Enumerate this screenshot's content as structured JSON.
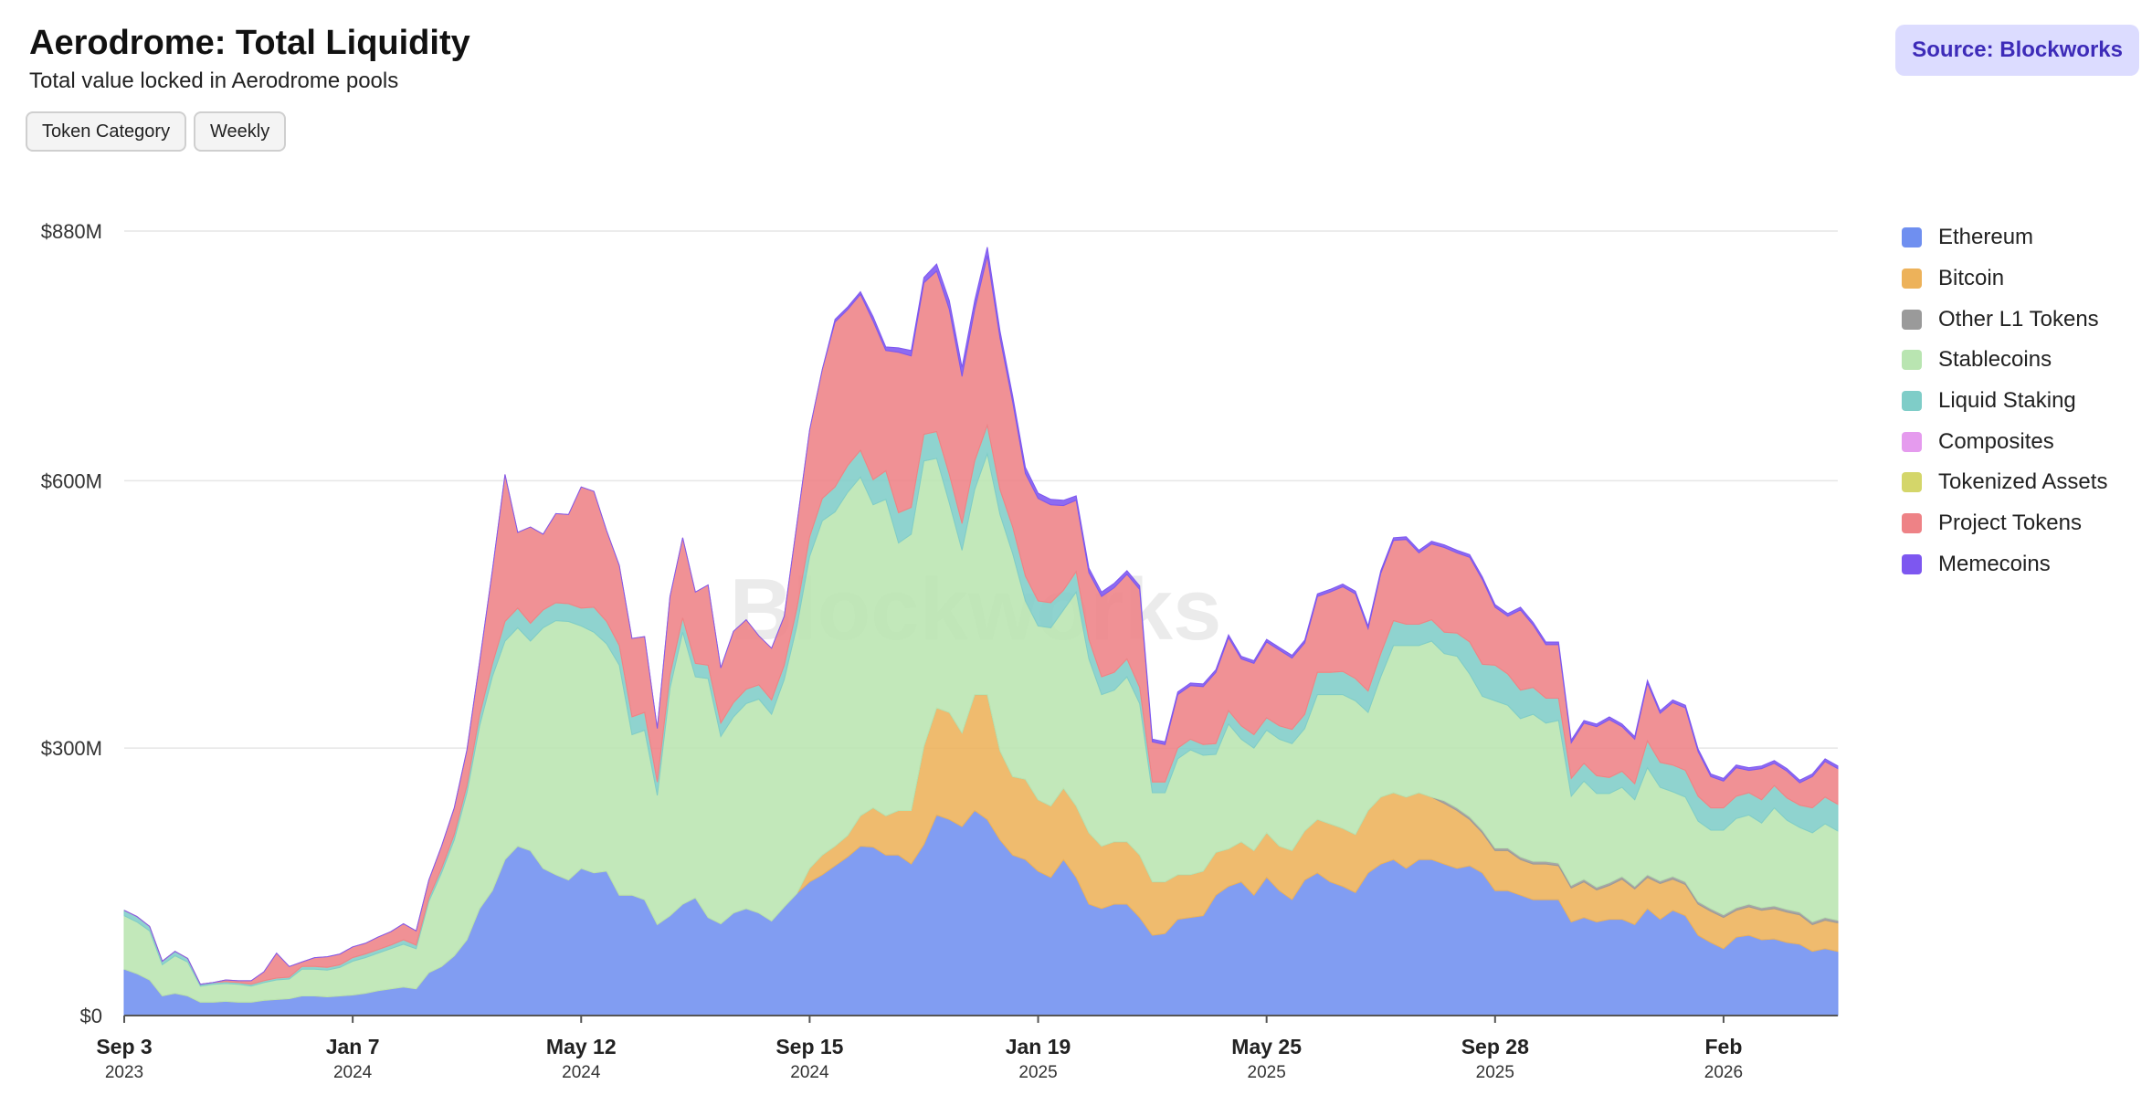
{
  "header": {
    "title": "Aerodrome: Total Liquidity",
    "subtitle": "Total value locked in Aerodrome pools",
    "source_label": "Source: Blockworks"
  },
  "controls": {
    "category_label": "Token Category",
    "interval_label": "Weekly"
  },
  "watermark": "Blockworks",
  "chart_data": {
    "type": "area",
    "stacked": true,
    "grid": true,
    "legend_position": "right",
    "ylim": [
      0,
      880
    ],
    "y_ticks": [
      0,
      300,
      600,
      880
    ],
    "y_tick_labels": [
      "$0",
      "$300M",
      "$600M",
      "$880M"
    ],
    "x_ticks": [
      {
        "label": "Sep 3",
        "year": "2023",
        "index": 0
      },
      {
        "label": "Jan 7",
        "year": "2024",
        "index": 18
      },
      {
        "label": "May 12",
        "year": "2024",
        "index": 36
      },
      {
        "label": "Sep 15",
        "year": "2024",
        "index": 54
      },
      {
        "label": "Jan 19",
        "year": "2025",
        "index": 72
      },
      {
        "label": "May 25",
        "year": "2025",
        "index": 90
      },
      {
        "label": "Sep 28",
        "year": "2025",
        "index": 108
      },
      {
        "label": "Feb",
        "year": "2026",
        "index": 126
      }
    ],
    "series": [
      {
        "name": "Ethereum",
        "color": "#6f8ff0",
        "values": [
          52,
          47,
          40,
          22,
          25,
          22,
          15,
          15,
          16,
          15,
          15,
          17,
          18,
          19,
          22,
          22,
          21,
          22,
          23,
          25,
          28,
          30,
          32,
          30,
          48,
          55,
          67,
          85,
          120,
          140,
          175,
          190,
          185,
          165,
          158,
          152,
          165,
          160,
          162,
          135,
          135,
          130,
          102,
          112,
          125,
          132,
          110,
          103,
          115,
          120,
          115,
          106,
          122,
          137,
          150,
          158,
          168,
          178,
          190,
          189,
          180,
          180,
          170,
          192,
          225,
          220,
          212,
          230,
          220,
          197,
          180,
          175,
          162,
          155,
          175,
          155,
          125,
          120,
          125,
          125,
          110,
          90,
          92,
          108,
          110,
          112,
          135,
          145,
          150,
          135,
          155,
          140,
          130,
          152,
          160,
          150,
          145,
          138,
          160,
          170,
          175,
          165,
          175,
          175,
          170,
          165,
          168,
          160,
          140,
          140,
          135,
          130,
          130,
          130,
          105,
          110,
          105,
          108,
          108,
          102,
          120,
          108,
          118,
          112,
          90,
          82,
          75,
          88,
          90,
          85,
          86,
          82,
          80,
          72,
          75,
          72
        ]
      },
      {
        "name": "Bitcoin",
        "color": "#edb25a",
        "values": [
          0,
          0,
          0,
          0,
          0,
          0,
          0,
          0,
          0,
          0,
          0,
          0,
          0,
          0,
          0,
          0,
          0,
          0,
          0,
          0,
          0,
          0,
          0,
          0,
          0,
          0,
          0,
          0,
          0,
          0,
          0,
          0,
          0,
          0,
          0,
          0,
          0,
          0,
          0,
          0,
          0,
          0,
          0,
          0,
          0,
          0,
          0,
          0,
          0,
          0,
          0,
          0,
          0,
          0,
          15,
          22,
          22,
          24,
          34,
          44,
          44,
          50,
          60,
          110,
          120,
          120,
          105,
          130,
          140,
          100,
          88,
          90,
          80,
          80,
          80,
          80,
          80,
          70,
          70,
          70,
          70,
          60,
          58,
          50,
          48,
          50,
          48,
          42,
          45,
          50,
          50,
          50,
          55,
          55,
          60,
          65,
          65,
          65,
          70,
          75,
          75,
          80,
          75,
          70,
          68,
          65,
          52,
          45,
          45,
          45,
          40,
          40,
          40,
          38,
          38,
          40,
          36,
          38,
          45,
          40,
          35,
          40,
          35,
          35,
          35,
          35,
          35,
          30,
          32,
          33,
          34,
          34,
          33,
          30,
          32,
          32
        ]
      },
      {
        "name": "Other L1 Tokens",
        "color": "#9a9a9a",
        "values": [
          0,
          0,
          0,
          0,
          0,
          0,
          0,
          0,
          0,
          0,
          0,
          0,
          0,
          0,
          0,
          0,
          0,
          0,
          0,
          0,
          0,
          0,
          0,
          0,
          0,
          0,
          0,
          0,
          0,
          0,
          0,
          0,
          0,
          0,
          0,
          0,
          0,
          0,
          0,
          0,
          0,
          0,
          0,
          0,
          0,
          0,
          0,
          0,
          0,
          0,
          0,
          0,
          0,
          0,
          0,
          0,
          0,
          0,
          0,
          0,
          0,
          0,
          0,
          0,
          0,
          0,
          0,
          0,
          0,
          0,
          0,
          0,
          0,
          0,
          0,
          0,
          0,
          0,
          0,
          0,
          0,
          0,
          0,
          0,
          0,
          0,
          0,
          0,
          0,
          0,
          0,
          0,
          0,
          0,
          0,
          0,
          0,
          0,
          0,
          0,
          0,
          0,
          0,
          0,
          3,
          3,
          3,
          3,
          3,
          3,
          3,
          3,
          3,
          3,
          3,
          3,
          3,
          3,
          3,
          3,
          3,
          3,
          3,
          3,
          3,
          3,
          3,
          3,
          3,
          3,
          3,
          3,
          3,
          3,
          3,
          3
        ]
      },
      {
        "name": "Stablecoins",
        "color": "#b9e5b1",
        "values": [
          60,
          58,
          55,
          35,
          42,
          38,
          18,
          20,
          20,
          20,
          18,
          20,
          22,
          22,
          30,
          30,
          30,
          32,
          38,
          40,
          42,
          45,
          48,
          45,
          80,
          105,
          130,
          165,
          205,
          240,
          245,
          245,
          235,
          270,
          285,
          290,
          272,
          270,
          255,
          258,
          180,
          190,
          145,
          255,
          305,
          248,
          268,
          210,
          220,
          230,
          240,
          232,
          255,
          300,
          350,
          375,
          375,
          385,
          380,
          340,
          355,
          300,
          310,
          320,
          280,
          235,
          205,
          230,
          270,
          265,
          250,
          200,
          195,
          200,
          200,
          240,
          195,
          170,
          170,
          185,
          170,
          100,
          100,
          130,
          140,
          130,
          110,
          140,
          115,
          115,
          115,
          120,
          120,
          115,
          140,
          145,
          150,
          150,
          110,
          135,
          165,
          170,
          165,
          175,
          165,
          170,
          160,
          150,
          165,
          160,
          155,
          165,
          155,
          160,
          100,
          110,
          105,
          100,
          100,
          97,
          120,
          105,
          95,
          95,
          90,
          88,
          95,
          100,
          100,
          95,
          110,
          100,
          95,
          100,
          105,
          100
        ]
      },
      {
        "name": "Liquid Staking",
        "color": "#7fcdc8",
        "values": [
          6,
          6,
          5,
          4,
          5,
          4,
          2,
          2,
          2,
          2,
          2,
          2,
          2,
          2,
          3,
          3,
          3,
          3,
          4,
          4,
          4,
          4,
          5,
          4,
          4,
          5,
          6,
          8,
          12,
          14,
          22,
          22,
          20,
          20,
          20,
          20,
          20,
          28,
          25,
          22,
          20,
          20,
          15,
          15,
          16,
          15,
          15,
          15,
          16,
          16,
          16,
          16,
          16,
          20,
          22,
          25,
          28,
          30,
          30,
          28,
          32,
          34,
          30,
          30,
          30,
          32,
          30,
          32,
          32,
          28,
          30,
          28,
          28,
          28,
          22,
          23,
          22,
          20,
          20,
          20,
          18,
          12,
          12,
          12,
          12,
          12,
          12,
          15,
          15,
          15,
          14,
          15,
          16,
          16,
          25,
          25,
          26,
          25,
          24,
          26,
          28,
          24,
          24,
          24,
          24,
          26,
          36,
          36,
          40,
          35,
          32,
          30,
          28,
          25,
          20,
          20,
          20,
          18,
          18,
          18,
          30,
          28,
          30,
          30,
          28,
          25,
          25,
          25,
          25,
          26,
          25,
          25,
          25,
          28,
          30,
          30
        ]
      },
      {
        "name": "Composites",
        "color": "#e59bee",
        "values": [
          0,
          0,
          0,
          0,
          0,
          0,
          0,
          0,
          0,
          0,
          0,
          0,
          0,
          0,
          0,
          0,
          0,
          0,
          0,
          0,
          0,
          0,
          0,
          0,
          0,
          0,
          0,
          0,
          0,
          0,
          0,
          0,
          0,
          0,
          0,
          0,
          0,
          0,
          0,
          0,
          0,
          0,
          0,
          0,
          0,
          0,
          0,
          0,
          0,
          0,
          0,
          0,
          0,
          0,
          0,
          0,
          0,
          0,
          0,
          0,
          0,
          0,
          0,
          0,
          0,
          0,
          0,
          0,
          0,
          0,
          0,
          0,
          0,
          0,
          0,
          0,
          0,
          0,
          0,
          0,
          0,
          0,
          0,
          0,
          0,
          0,
          0,
          0,
          0,
          0,
          0,
          0,
          0,
          0,
          0,
          0,
          0,
          0,
          0,
          0,
          0,
          0,
          0,
          0,
          0,
          0,
          0,
          0,
          0,
          0,
          0,
          0,
          0,
          0,
          0,
          0,
          0,
          0,
          0,
          0,
          0,
          0,
          0,
          0,
          0,
          0,
          0,
          0,
          0,
          0,
          0,
          0,
          0,
          0,
          0,
          0
        ]
      },
      {
        "name": "Tokenized Assets",
        "color": "#d4d66a",
        "values": [
          0,
          0,
          0,
          0,
          0,
          0,
          0,
          0,
          0,
          0,
          0,
          0,
          0,
          0,
          0,
          0,
          0,
          0,
          0,
          0,
          0,
          0,
          0,
          0,
          0,
          0,
          0,
          0,
          0,
          0,
          0,
          0,
          0,
          0,
          0,
          0,
          0,
          0,
          0,
          0,
          0,
          0,
          0,
          0,
          0,
          0,
          0,
          0,
          0,
          0,
          0,
          0,
          0,
          0,
          0,
          0,
          0,
          0,
          0,
          0,
          0,
          0,
          0,
          0,
          0,
          0,
          0,
          0,
          0,
          0,
          0,
          0,
          0,
          0,
          0,
          0,
          0,
          0,
          0,
          0,
          0,
          0,
          0,
          0,
          0,
          0,
          0,
          0,
          0,
          0,
          0,
          0,
          0,
          0,
          0,
          0,
          0,
          0,
          0,
          0,
          0,
          0,
          0,
          0,
          0,
          0,
          0,
          0,
          0,
          0,
          0,
          0,
          0,
          0,
          0,
          0,
          0,
          0,
          0,
          0,
          0,
          0,
          0,
          0,
          0,
          0,
          0,
          0,
          0,
          0,
          0,
          0,
          0,
          0,
          0,
          0
        ]
      },
      {
        "name": "Project Tokens",
        "color": "#ee8286",
        "values": [
          0,
          0,
          0,
          0,
          0,
          0,
          0,
          0,
          2,
          2,
          4,
          10,
          28,
          12,
          5,
          10,
          12,
          12,
          12,
          12,
          14,
          15,
          18,
          16,
          20,
          25,
          30,
          40,
          60,
          105,
          165,
          85,
          108,
          85,
          100,
          100,
          136,
          130,
          102,
          90,
          88,
          85,
          60,
          88,
          90,
          80,
          90,
          62,
          80,
          78,
          55,
          58,
          55,
          95,
          120,
          145,
          185,
          175,
          175,
          178,
          135,
          180,
          170,
          170,
          180,
          185,
          165,
          170,
          190,
          170,
          140,
          115,
          115,
          110,
          95,
          80,
          75,
          90,
          95,
          95,
          110,
          45,
          42,
          60,
          60,
          65,
          80,
          82,
          75,
          80,
          85,
          85,
          80,
          80,
          85,
          90,
          95,
          95,
          70,
          90,
          90,
          95,
          80,
          85,
          95,
          90,
          95,
          95,
          65,
          65,
          90,
          70,
          60,
          60,
          40,
          45,
          55,
          65,
          50,
          50,
          65,
          55,
          70,
          70,
          50,
          35,
          30,
          32,
          25,
          35,
          25,
          30,
          25,
          35,
          40,
          40
        ]
      },
      {
        "name": "Memecoins",
        "color": "#7d57f0",
        "values": [
          0,
          0,
          0,
          0,
          0,
          0,
          0,
          0,
          0,
          0,
          0,
          0,
          0,
          0,
          0,
          0,
          0,
          0,
          0,
          0,
          0,
          0,
          0,
          0,
          0,
          0,
          0,
          0,
          0,
          0,
          0,
          0,
          0,
          0,
          0,
          0,
          0,
          0,
          0,
          0,
          0,
          0,
          0,
          0,
          0,
          0,
          0,
          0,
          0,
          0,
          0,
          0,
          0,
          0,
          0,
          0,
          3,
          3,
          3,
          5,
          4,
          5,
          6,
          6,
          8,
          10,
          10,
          10,
          10,
          8,
          7,
          7,
          6,
          6,
          6,
          5,
          5,
          5,
          5,
          4,
          4,
          3,
          3,
          3,
          3,
          3,
          3,
          3,
          3,
          3,
          3,
          3,
          3,
          3,
          3,
          3,
          3,
          3,
          3,
          3,
          3,
          3,
          3,
          3,
          3,
          3,
          3,
          3,
          3,
          3,
          3,
          3,
          3,
          3,
          3,
          3,
          3,
          3,
          3,
          3,
          3,
          3,
          3,
          3,
          3,
          3,
          3,
          3,
          3,
          3,
          3,
          3,
          3,
          3,
          3,
          3
        ]
      }
    ]
  }
}
